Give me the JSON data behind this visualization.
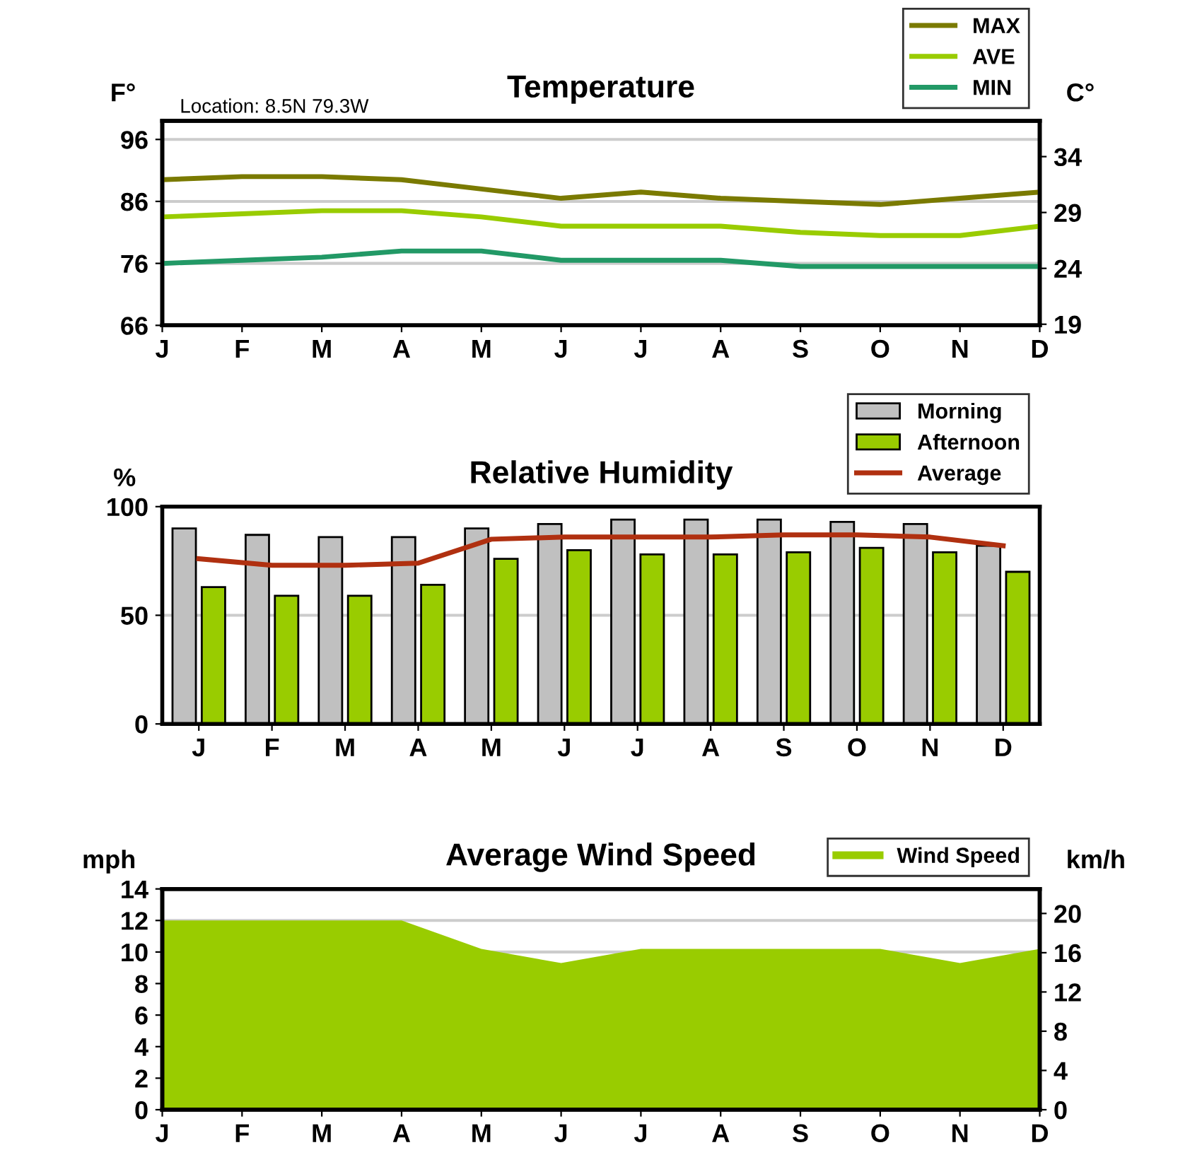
{
  "chart_data": [
    {
      "type": "line",
      "title": "Temperature",
      "annotations": [
        "Location: 8.5N 79.3W"
      ],
      "ylabel": "F°",
      "y2label": "C°",
      "categories": [
        "J",
        "F",
        "M",
        "A",
        "M",
        "J",
        "J",
        "A",
        "S",
        "O",
        "N",
        "D"
      ],
      "series": [
        {
          "name": "MAX",
          "color": "#7a7a00",
          "values": [
            89.5,
            90,
            90,
            89.5,
            88,
            86.5,
            87.5,
            86.5,
            86,
            85.5,
            86.5,
            87.5
          ]
        },
        {
          "name": "AVE",
          "color": "#99cc00",
          "values": [
            83.5,
            84,
            84.5,
            84.5,
            83.5,
            82,
            82,
            82,
            81,
            80.5,
            80.5,
            82
          ]
        },
        {
          "name": "MIN",
          "color": "#229966",
          "values": [
            76,
            76.5,
            77,
            78,
            78,
            76.5,
            76.5,
            76.5,
            75.5,
            75.5,
            75.5,
            75.5
          ]
        }
      ],
      "ylim": [
        66,
        99
      ],
      "yticks": [
        66,
        76,
        86,
        96
      ],
      "y2lim": [
        18.9,
        37.2
      ],
      "y2ticks": [
        19,
        24,
        29,
        34
      ],
      "grid": "y",
      "legend": "top right"
    },
    {
      "type": "bar",
      "title": "Relative Humidity",
      "ylabel": "%",
      "categories": [
        "J",
        "F",
        "M",
        "A",
        "M",
        "J",
        "J",
        "A",
        "S",
        "O",
        "N",
        "D"
      ],
      "series": [
        {
          "name": "Morning",
          "color": "#c0c0c0",
          "values": [
            90,
            87,
            86,
            86,
            90,
            92,
            94,
            94,
            94,
            93,
            92,
            82
          ]
        },
        {
          "name": "Afternoon",
          "color": "#99cc00",
          "values": [
            63,
            59,
            59,
            64,
            76,
            80,
            78,
            78,
            79,
            81,
            79,
            70
          ]
        },
        {
          "name": "Average",
          "type": "line",
          "color": "#b03010",
          "values": [
            76,
            73,
            73,
            74,
            85,
            86,
            86,
            86,
            87,
            87,
            86,
            82
          ]
        }
      ],
      "ylim": [
        0,
        100
      ],
      "yticks": [
        0,
        50,
        100
      ],
      "grid": "y",
      "legend": "top right"
    },
    {
      "type": "area",
      "title": "Average Wind Speed",
      "ylabel": "mph",
      "y2label": "km/h",
      "categories": [
        "J",
        "F",
        "M",
        "A",
        "M",
        "J",
        "J",
        "A",
        "S",
        "O",
        "N",
        "D"
      ],
      "series": [
        {
          "name": "Wind Speed",
          "color": "#99cc00",
          "values": [
            12,
            12,
            12,
            12,
            10.2,
            9.3,
            10.2,
            10.2,
            10.2,
            10.2,
            9.3,
            10.2
          ]
        }
      ],
      "ylim": [
        0,
        14
      ],
      "yticks": [
        0,
        2,
        4,
        6,
        8,
        10,
        12,
        14
      ],
      "y2lim": [
        0,
        22.5
      ],
      "y2ticks": [
        0,
        4,
        8,
        12,
        16,
        20
      ],
      "grid": "y",
      "legend": "top right"
    }
  ]
}
